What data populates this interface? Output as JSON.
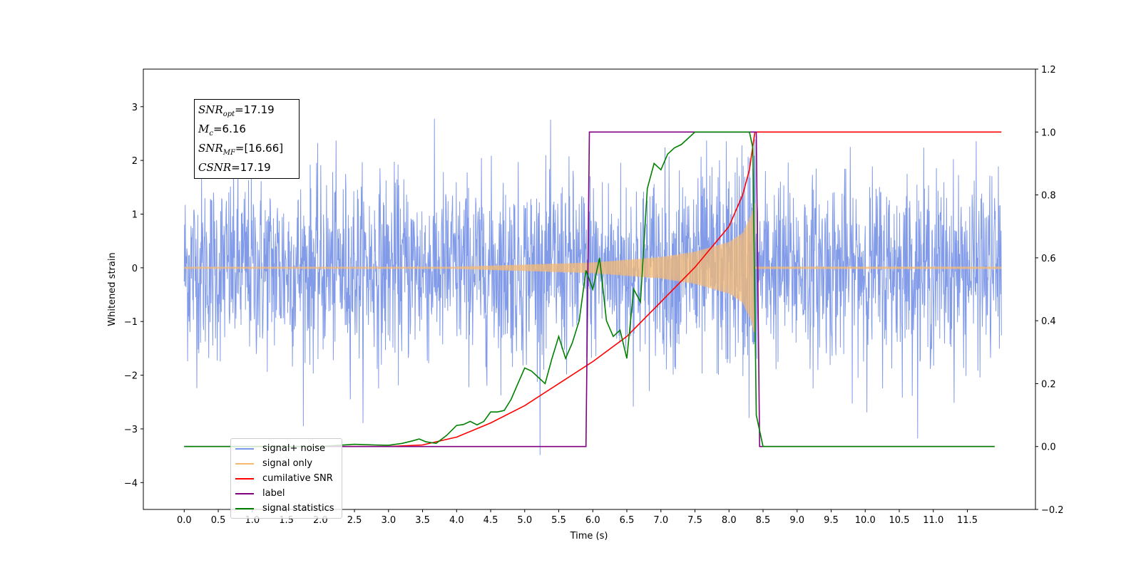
{
  "chart_data": {
    "type": "line",
    "xlabel": "Time (s)",
    "ylabel": "Whitened strain",
    "xlim": [
      -0.6,
      12.5
    ],
    "ylim": [
      -4.5,
      3.7
    ],
    "y2lim": [
      -0.2,
      1.2
    ],
    "x_ticks": [
      "0.0",
      "0.5",
      "1.0",
      "1.5",
      "2.0",
      "2.5",
      "3.0",
      "3.5",
      "4.0",
      "4.5",
      "5.0",
      "5.5",
      "6.0",
      "6.5",
      "7.0",
      "7.5",
      "8.0",
      "8.5",
      "9.0",
      "9.5",
      "10.0",
      "10.5",
      "11.0",
      "11.5"
    ],
    "y_ticks": [
      "3",
      "2",
      "1",
      "0",
      "−1",
      "−2",
      "−3",
      "−4"
    ],
    "y2_ticks": [
      "1.2",
      "1.0",
      "0.8",
      "0.6",
      "0.4",
      "0.2",
      "0.0",
      "−0.2"
    ],
    "legend_position": "lower-left",
    "info_box": {
      "snr_opt": "=17.19",
      "mc": "=6.16",
      "snr_mf": "=[16.66]",
      "csnr": "=17.19"
    },
    "series": [
      {
        "name": "signal+ noise",
        "color": "#7b96e8",
        "axis": "left",
        "style": "noise envelope, amplitude ~±1.6 typical, peaks to ±3.3",
        "t_range": [
          0.0,
          12.0
        ]
      },
      {
        "name": "signal only",
        "color": "#f5b971",
        "axis": "left",
        "style": "chirp",
        "amplitude": [
          [
            4.0,
            0.02
          ],
          [
            5.0,
            0.06
          ],
          [
            6.0,
            0.1
          ],
          [
            7.0,
            0.2
          ],
          [
            7.5,
            0.3
          ],
          [
            8.0,
            0.48
          ],
          [
            8.2,
            0.65
          ],
          [
            8.33,
            1.0
          ],
          [
            8.36,
            1.2
          ]
        ],
        "t_range": [
          0.0,
          12.0
        ]
      },
      {
        "name": "cumilative SNR",
        "color": "#ff0000",
        "axis": "right",
        "points": [
          [
            2.4,
            0.0
          ],
          [
            3.0,
            0.0
          ],
          [
            3.5,
            0.005
          ],
          [
            4.0,
            0.03
          ],
          [
            4.5,
            0.075
          ],
          [
            5.0,
            0.13
          ],
          [
            5.5,
            0.2
          ],
          [
            6.0,
            0.27
          ],
          [
            6.5,
            0.35
          ],
          [
            7.0,
            0.46
          ],
          [
            7.5,
            0.57
          ],
          [
            8.0,
            0.7
          ],
          [
            8.2,
            0.8
          ],
          [
            8.3,
            0.88
          ],
          [
            8.38,
            1.0
          ],
          [
            12.0,
            1.0
          ]
        ]
      },
      {
        "name": "label",
        "color": "#800080",
        "axis": "right",
        "points": [
          [
            0.0,
            0.0
          ],
          [
            5.9,
            0.0
          ],
          [
            5.95,
            1.0
          ],
          [
            8.4,
            1.0
          ],
          [
            8.45,
            0.0
          ],
          [
            11.9,
            0.0
          ]
        ]
      },
      {
        "name": "signal statistics",
        "color": "#008000",
        "axis": "right",
        "points": [
          [
            0.0,
            0.0
          ],
          [
            2.0,
            0.0
          ],
          [
            2.5,
            0.007
          ],
          [
            2.8,
            0.005
          ],
          [
            3.0,
            0.004
          ],
          [
            3.2,
            0.01
          ],
          [
            3.35,
            0.018
          ],
          [
            3.45,
            0.024
          ],
          [
            3.55,
            0.015
          ],
          [
            3.7,
            0.01
          ],
          [
            3.85,
            0.035
          ],
          [
            4.0,
            0.067
          ],
          [
            4.1,
            0.07
          ],
          [
            4.2,
            0.08
          ],
          [
            4.3,
            0.069
          ],
          [
            4.4,
            0.08
          ],
          [
            4.5,
            0.11
          ],
          [
            4.6,
            0.11
          ],
          [
            4.7,
            0.115
          ],
          [
            4.8,
            0.15
          ],
          [
            4.9,
            0.2
          ],
          [
            5.0,
            0.25
          ],
          [
            5.1,
            0.24
          ],
          [
            5.2,
            0.22
          ],
          [
            5.3,
            0.2
          ],
          [
            5.4,
            0.28
          ],
          [
            5.5,
            0.35
          ],
          [
            5.6,
            0.28
          ],
          [
            5.7,
            0.33
          ],
          [
            5.8,
            0.4
          ],
          [
            5.9,
            0.56
          ],
          [
            6.0,
            0.5
          ],
          [
            6.1,
            0.6
          ],
          [
            6.2,
            0.4
          ],
          [
            6.3,
            0.35
          ],
          [
            6.4,
            0.37
          ],
          [
            6.5,
            0.28
          ],
          [
            6.6,
            0.5
          ],
          [
            6.7,
            0.46
          ],
          [
            6.8,
            0.82
          ],
          [
            6.9,
            0.9
          ],
          [
            7.0,
            0.88
          ],
          [
            7.1,
            0.93
          ],
          [
            7.2,
            0.95
          ],
          [
            7.3,
            0.96
          ],
          [
            7.5,
            1.0
          ],
          [
            8.3,
            1.0
          ],
          [
            8.35,
            0.95
          ],
          [
            8.4,
            0.1
          ],
          [
            8.5,
            0.0
          ],
          [
            11.9,
            0.0
          ]
        ]
      }
    ]
  }
}
